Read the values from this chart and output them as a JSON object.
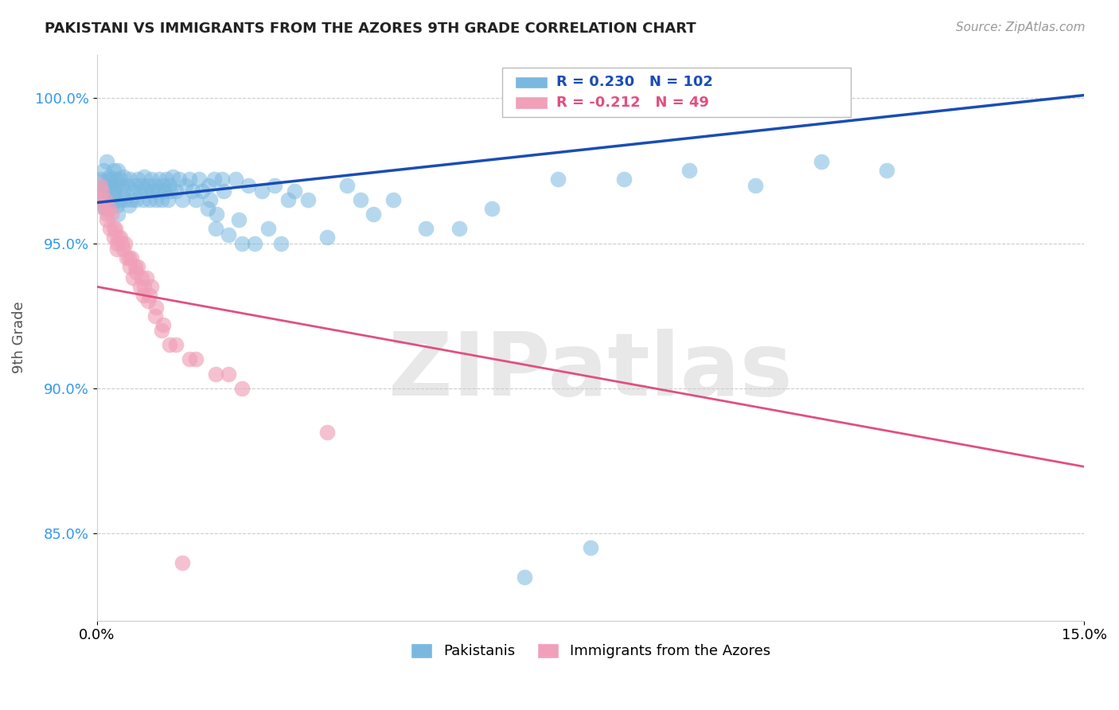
{
  "title": "PAKISTANI VS IMMIGRANTS FROM THE AZORES 9TH GRADE CORRELATION CHART",
  "source": "Source: ZipAtlas.com",
  "ylabel": "9th Grade",
  "xlim": [
    0.0,
    15.0
  ],
  "ylim": [
    82.0,
    101.5
  ],
  "yticks": [
    85.0,
    90.0,
    95.0,
    100.0
  ],
  "ytick_labels": [
    "85.0%",
    "90.0%",
    "95.0%",
    "100.0%"
  ],
  "xtick_labels": [
    "0.0%",
    "15.0%"
  ],
  "blue_R": 0.23,
  "blue_N": 102,
  "pink_R": -0.212,
  "pink_N": 49,
  "blue_color": "#7ab8e0",
  "pink_color": "#f0a0b8",
  "blue_line_color": "#1a4db5",
  "pink_line_color": "#e05080",
  "legend_label_blue": "Pakistanis",
  "legend_label_pink": "Immigrants from the Azores",
  "watermark": "ZIPatlas",
  "blue_scatter_x": [
    0.05,
    0.08,
    0.1,
    0.1,
    0.12,
    0.12,
    0.15,
    0.15,
    0.18,
    0.2,
    0.2,
    0.22,
    0.22,
    0.25,
    0.25,
    0.28,
    0.28,
    0.3,
    0.3,
    0.32,
    0.32,
    0.35,
    0.35,
    0.38,
    0.4,
    0.4,
    0.42,
    0.45,
    0.48,
    0.5,
    0.52,
    0.55,
    0.58,
    0.6,
    0.62,
    0.65,
    0.68,
    0.7,
    0.72,
    0.75,
    0.78,
    0.8,
    0.82,
    0.85,
    0.88,
    0.9,
    0.92,
    0.95,
    0.98,
    1.0,
    1.02,
    1.05,
    1.08,
    1.1,
    1.12,
    1.15,
    1.2,
    1.25,
    1.3,
    1.35,
    1.4,
    1.45,
    1.5,
    1.55,
    1.6,
    1.7,
    1.8,
    1.9,
    2.0,
    2.1,
    2.2,
    2.3,
    2.4,
    2.5,
    2.6,
    2.7,
    2.8,
    2.9,
    3.0,
    3.2,
    3.5,
    3.8,
    4.0,
    4.2,
    4.5,
    5.0,
    5.5,
    6.0,
    6.5,
    7.0,
    7.5,
    8.0,
    9.0,
    10.0,
    11.0,
    12.0,
    1.68,
    1.72,
    1.78,
    1.82,
    1.92,
    2.15
  ],
  "blue_scatter_y": [
    97.2,
    96.8,
    97.5,
    96.5,
    97.0,
    96.2,
    97.8,
    96.8,
    97.3,
    96.5,
    97.2,
    97.0,
    96.3,
    97.5,
    96.8,
    97.2,
    96.5,
    97.0,
    96.3,
    97.5,
    96.0,
    97.2,
    96.5,
    97.0,
    96.8,
    97.3,
    96.5,
    97.0,
    96.3,
    97.2,
    96.5,
    96.8,
    97.0,
    96.5,
    97.2,
    96.8,
    97.0,
    96.5,
    97.3,
    96.8,
    97.0,
    96.5,
    97.2,
    96.8,
    97.0,
    96.5,
    96.8,
    97.2,
    96.5,
    97.0,
    96.8,
    97.2,
    96.5,
    97.0,
    96.8,
    97.3,
    96.8,
    97.2,
    96.5,
    97.0,
    97.2,
    96.8,
    96.5,
    97.2,
    96.8,
    97.0,
    95.5,
    97.2,
    95.3,
    97.2,
    95.0,
    97.0,
    95.0,
    96.8,
    95.5,
    97.0,
    95.0,
    96.5,
    96.8,
    96.5,
    95.2,
    97.0,
    96.5,
    96.0,
    96.5,
    95.5,
    95.5,
    96.2,
    83.5,
    97.2,
    84.5,
    97.2,
    97.5,
    97.0,
    97.8,
    97.5,
    96.2,
    96.5,
    97.2,
    96.0,
    96.8,
    95.8
  ],
  "pink_scatter_x": [
    0.05,
    0.05,
    0.08,
    0.1,
    0.12,
    0.15,
    0.15,
    0.18,
    0.2,
    0.22,
    0.25,
    0.25,
    0.28,
    0.3,
    0.3,
    0.32,
    0.35,
    0.38,
    0.4,
    0.42,
    0.45,
    0.48,
    0.5,
    0.52,
    0.55,
    0.58,
    0.6,
    0.62,
    0.65,
    0.68,
    0.7,
    0.72,
    0.75,
    0.78,
    0.8,
    0.82,
    0.88,
    0.9,
    0.98,
    1.0,
    1.1,
    1.2,
    1.3,
    1.4,
    1.5,
    1.8,
    2.0,
    2.2,
    3.5
  ],
  "pink_scatter_y": [
    97.0,
    96.5,
    96.8,
    96.3,
    96.5,
    96.0,
    95.8,
    96.2,
    95.5,
    96.0,
    95.5,
    95.2,
    95.5,
    94.8,
    95.0,
    95.2,
    95.2,
    95.0,
    94.8,
    95.0,
    94.5,
    94.5,
    94.2,
    94.5,
    93.8,
    94.2,
    94.0,
    94.2,
    93.5,
    93.8,
    93.2,
    93.5,
    93.8,
    93.0,
    93.2,
    93.5,
    92.5,
    92.8,
    92.0,
    92.2,
    91.5,
    91.5,
    84.0,
    91.0,
    91.0,
    90.5,
    90.5,
    90.0,
    88.5
  ],
  "blue_line_x": [
    0.0,
    15.0
  ],
  "blue_line_y": [
    96.4,
    100.1
  ],
  "pink_line_x": [
    0.0,
    15.0
  ],
  "pink_line_y": [
    93.5,
    87.3
  ],
  "big_blue_dot_x": 0.1,
  "big_blue_dot_y": 96.8,
  "big_pink_dot_x": 0.07,
  "big_pink_dot_y": 96.5
}
